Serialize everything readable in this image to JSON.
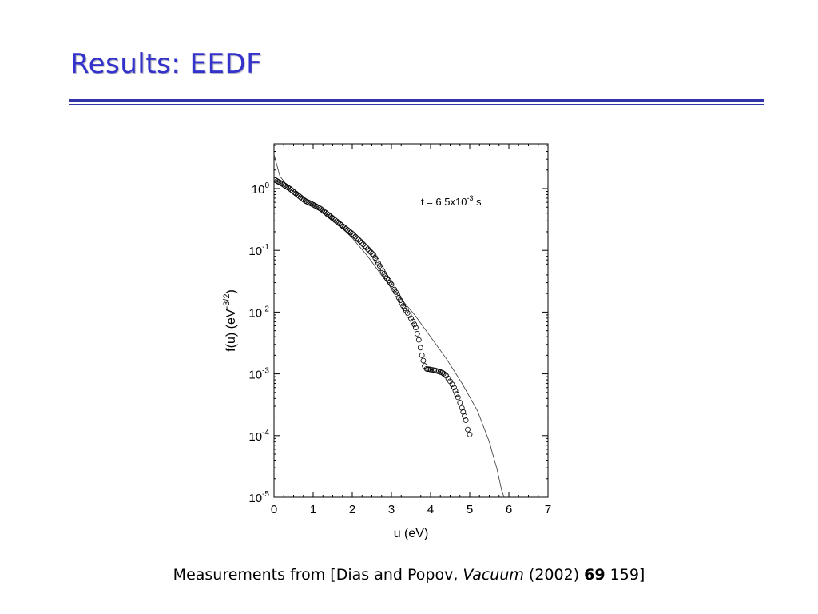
{
  "slide": {
    "title": "Results: EEDF",
    "caption": {
      "prefix": "Measurements from [Dias and Popov, ",
      "journal": "Vacuum",
      "year": " (2002) ",
      "volume": "69",
      "page": " 159]"
    }
  },
  "colors": {
    "title": "#3333cc",
    "rule": "#3333aa",
    "axes": "#000000"
  },
  "chart_data": {
    "type": "scatter",
    "xlabel": "u (eV)",
    "ylabel": "f(u) (eV",
    "ylabel_exp": "-3/2",
    "ylabel_close": ")",
    "xlim": [
      0,
      7
    ],
    "ylim_log10": [
      -5,
      0.7
    ],
    "yscale": "log",
    "xticks": [
      "0",
      "1",
      "2",
      "3",
      "4",
      "5",
      "6",
      "7"
    ],
    "yticks": [
      {
        "base": "10",
        "exp": "0",
        "value": 0
      },
      {
        "base": "10",
        "exp": "-1",
        "value": -1
      },
      {
        "base": "10",
        "exp": "-2",
        "value": -2
      },
      {
        "base": "10",
        "exp": "-3",
        "value": -3
      },
      {
        "base": "10",
        "exp": "-4",
        "value": -4
      },
      {
        "base": "10",
        "exp": "-5",
        "value": -5
      }
    ],
    "annotation": {
      "prefix": "t = 6.5x10",
      "exp": "-3",
      "suffix": " s"
    },
    "grid": false,
    "series": [
      {
        "marker": "open-circle",
        "x": [
          0.0,
          0.2,
          0.4,
          0.6,
          0.8,
          1.0,
          1.2,
          1.4,
          1.6,
          1.8,
          2.0,
          2.2,
          2.4,
          2.55,
          2.7,
          2.85,
          3.0,
          3.15,
          3.3,
          3.45,
          3.55,
          3.62,
          3.7,
          3.78,
          3.85,
          3.9,
          4.0,
          4.1,
          4.2,
          4.3,
          4.4,
          4.5,
          4.6,
          4.7,
          4.8,
          4.9,
          4.95,
          5.0
        ],
        "y_log10": [
          0.15,
          0.08,
          0.0,
          -0.1,
          -0.2,
          -0.26,
          -0.33,
          -0.43,
          -0.53,
          -0.63,
          -0.73,
          -0.85,
          -0.98,
          -1.08,
          -1.25,
          -1.42,
          -1.55,
          -1.72,
          -1.9,
          -2.05,
          -2.15,
          -2.25,
          -2.45,
          -2.7,
          -2.87,
          -2.92,
          -2.93,
          -2.94,
          -2.96,
          -2.98,
          -3.03,
          -3.12,
          -3.22,
          -3.38,
          -3.55,
          -3.75,
          -3.9,
          -3.98
        ]
      },
      {
        "marker": "line",
        "x": [
          0.0,
          0.15,
          0.4,
          0.8,
          1.2,
          1.6,
          2.0,
          2.4,
          2.8,
          3.2,
          3.6,
          4.0,
          4.4,
          4.8,
          5.2,
          5.5,
          5.7,
          5.82,
          5.88
        ],
        "y_log10": [
          0.55,
          0.2,
          0.0,
          -0.18,
          -0.35,
          -0.55,
          -0.8,
          -1.1,
          -1.45,
          -1.75,
          -2.05,
          -2.4,
          -2.75,
          -3.15,
          -3.6,
          -4.1,
          -4.55,
          -4.9,
          -5.0
        ]
      }
    ]
  }
}
